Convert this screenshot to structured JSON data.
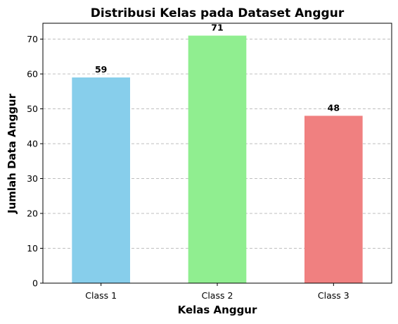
{
  "chart_data": {
    "type": "bar",
    "title": "Distribusi Kelas pada Dataset Anggur",
    "xlabel": "Kelas Anggur",
    "ylabel": "Jumlah Data Anggur",
    "categories": [
      "Class 1",
      "Class 2",
      "Class 3"
    ],
    "values": [
      59,
      71,
      48
    ],
    "colors": [
      "#87ceeb",
      "#90ee90",
      "#f08080"
    ],
    "ylim": [
      0,
      74.55
    ],
    "yticks": [
      0,
      10,
      20,
      30,
      40,
      50,
      60,
      70
    ],
    "grid": "y-dashed",
    "data_labels": true
  }
}
